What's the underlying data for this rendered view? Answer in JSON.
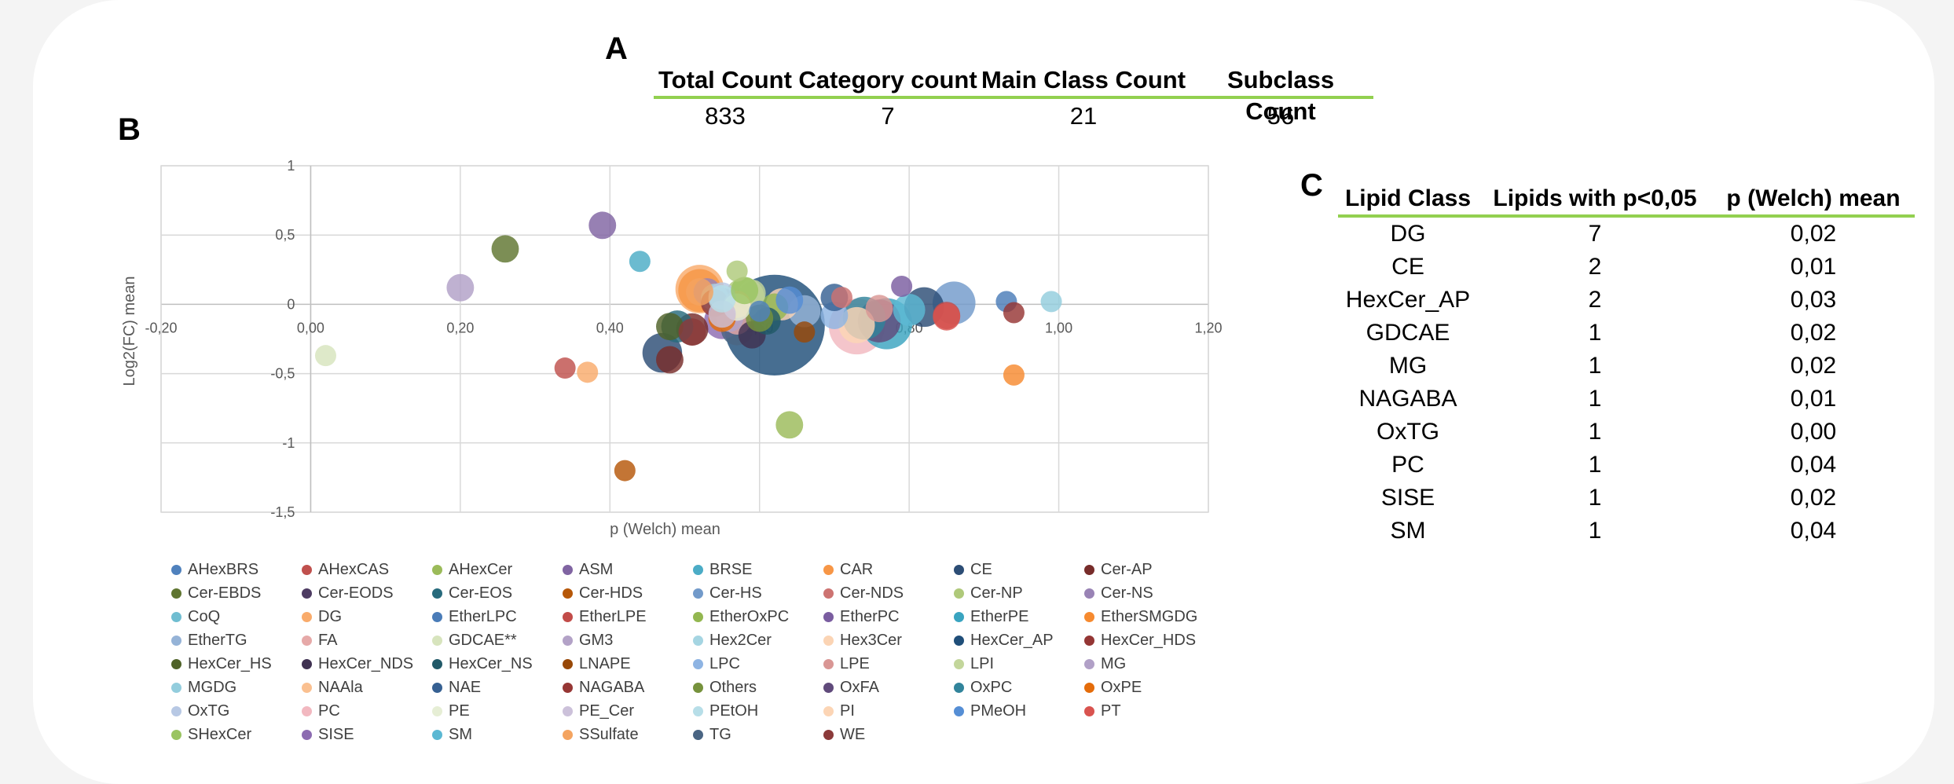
{
  "panels": {
    "a": "A",
    "b": "B",
    "c": "C"
  },
  "table_a": {
    "headers": [
      "Total Count",
      "Category count",
      "Main Class Count",
      "Subclass Count"
    ],
    "values": [
      "833",
      "7",
      "21",
      "56"
    ]
  },
  "table_c": {
    "headers": [
      "Lipid Class",
      "Lipids with p<0,05",
      "p (Welch) mean"
    ],
    "rows": [
      [
        "DG",
        "7",
        "0,02"
      ],
      [
        "CE",
        "2",
        "0,01"
      ],
      [
        "HexCer_AP",
        "2",
        "0,03"
      ],
      [
        "GDCAE",
        "1",
        "0,02"
      ],
      [
        "MG",
        "1",
        "0,02"
      ],
      [
        "NAGABA",
        "1",
        "0,01"
      ],
      [
        "OxTG",
        "1",
        "0,00"
      ],
      [
        "PC",
        "1",
        "0,04"
      ],
      [
        "SISE",
        "1",
        "0,02"
      ],
      [
        "SM",
        "1",
        "0,04"
      ]
    ]
  },
  "chart_data": {
    "type": "scatter",
    "title": "",
    "xlabel": "p (Welch) mean",
    "ylabel": "Log2(FC) mean",
    "xlim": [
      -0.2,
      1.2
    ],
    "ylim": [
      -1.5,
      1
    ],
    "x_ticks": [
      "-0,20",
      "0,00",
      "0,20",
      "0,40",
      "0,60",
      "0,80",
      "1,00",
      "1,20"
    ],
    "y_ticks": [
      "1",
      "0,5",
      "0",
      "-0,5",
      "-1",
      "-1,5"
    ],
    "grid": true,
    "legend_position": "bottom",
    "series": [
      {
        "name": "AHexBRS",
        "color": "#4f81bd",
        "points": [
          [
            0.6,
            -0.05,
            1
          ]
        ]
      },
      {
        "name": "AHexCAS",
        "color": "#c0504d",
        "points": [
          [
            0.34,
            -0.46,
            1
          ]
        ]
      },
      {
        "name": "AHexCer",
        "color": "#9bbb59",
        "points": [
          [
            0.64,
            -0.87,
            2
          ]
        ]
      },
      {
        "name": "ASM",
        "color": "#8064a2",
        "points": [
          [
            0.39,
            0.57,
            2
          ]
        ]
      },
      {
        "name": "BRSE",
        "color": "#4bacc6",
        "points": [
          [
            0.44,
            0.31,
            1
          ]
        ]
      },
      {
        "name": "CAR",
        "color": "#f79646",
        "points": [
          [
            0.52,
            0.1,
            6
          ]
        ]
      },
      {
        "name": "CE",
        "color": "#2c4d75",
        "points": [
          [
            0.47,
            -0.35,
            5
          ],
          [
            0.82,
            -0.02,
            5
          ]
        ]
      },
      {
        "name": "Cer-AP",
        "color": "#772c2a",
        "points": [
          [
            0.51,
            -0.18,
            3
          ],
          [
            0.48,
            -0.4,
            2
          ]
        ]
      },
      {
        "name": "Cer-EBDS",
        "color": "#5f7530",
        "points": [
          [
            0.26,
            0.4,
            2
          ]
        ]
      },
      {
        "name": "Cer-EODS",
        "color": "#4d3b62",
        "points": [
          [
            0.55,
            0.02,
            2
          ]
        ]
      },
      {
        "name": "Cer-EOS",
        "color": "#276a7c",
        "points": [
          [
            0.49,
            -0.16,
            3
          ]
        ]
      },
      {
        "name": "Cer-HDS",
        "color": "#b65708",
        "points": [
          [
            0.42,
            -1.2,
            1
          ]
        ]
      },
      {
        "name": "Cer-HS",
        "color": "#729aca",
        "points": [
          [
            0.86,
            0.01,
            6
          ]
        ]
      },
      {
        "name": "Cer-NDS",
        "color": "#cd7371",
        "points": [
          [
            0.71,
            0.05,
            1
          ]
        ]
      },
      {
        "name": "Cer-NP",
        "color": "#afc97a",
        "points": [
          [
            0.58,
            0.05,
            5
          ],
          [
            0.57,
            0.24,
            1
          ]
        ]
      },
      {
        "name": "Cer-NS",
        "color": "#9983b5",
        "points": [
          [
            0.53,
            0.09,
            2
          ]
        ]
      },
      {
        "name": "CoQ",
        "color": "#6fbdd1",
        "points": [
          [
            0.54,
            0.03,
            2
          ]
        ]
      },
      {
        "name": "DG",
        "color": "#f9ab6b",
        "points": [
          [
            0.52,
            0.11,
            8
          ],
          [
            0.37,
            -0.49,
            1
          ]
        ]
      },
      {
        "name": "EtherLPC",
        "color": "#4a7cb8",
        "points": [
          [
            0.93,
            0.02,
            1
          ]
        ]
      },
      {
        "name": "EtherLPE",
        "color": "#c24c49",
        "points": [
          [
            0.85,
            -0.08,
            2
          ]
        ]
      },
      {
        "name": "EtherOxPC",
        "color": "#93b750",
        "points": [
          [
            0.62,
            -0.02,
            2
          ]
        ]
      },
      {
        "name": "EtherPC",
        "color": "#7a5da0",
        "points": [
          [
            0.79,
            0.13,
            1
          ]
        ]
      },
      {
        "name": "EtherPE",
        "color": "#39a4c0",
        "points": [
          [
            0.77,
            -0.14,
            9
          ]
        ]
      },
      {
        "name": "EtherSMGDG",
        "color": "#f68a2f",
        "points": [
          [
            0.94,
            -0.51,
            1
          ]
        ]
      },
      {
        "name": "EtherTG",
        "color": "#95b3d7",
        "points": [
          [
            0.66,
            -0.05,
            3
          ]
        ]
      },
      {
        "name": "FA",
        "color": "#e6a9a8",
        "points": [
          [
            0.57,
            -0.12,
            2
          ]
        ]
      },
      {
        "name": "GDCAE**",
        "color": "#d7e4bd",
        "points": [
          [
            0.02,
            -0.37,
            1
          ]
        ]
      },
      {
        "name": "GM3",
        "color": "#b3a2c7",
        "points": [
          [
            0.56,
            -0.1,
            2
          ]
        ]
      },
      {
        "name": "Hex2Cer",
        "color": "#a5d5e2",
        "points": [
          [
            0.54,
            0.05,
            2
          ]
        ]
      },
      {
        "name": "Hex3Cer",
        "color": "#fbd4b4",
        "points": [
          [
            0.63,
            0.0,
            3
          ]
        ]
      },
      {
        "name": "HexCer_AP",
        "color": "#1f4e79",
        "points": [
          [
            0.62,
            -0.15,
            40
          ]
        ]
      },
      {
        "name": "HexCer_HDS",
        "color": "#943634",
        "points": [
          [
            0.54,
            0.01,
            2
          ]
        ]
      },
      {
        "name": "HexCer_HS",
        "color": "#4f6228",
        "points": [
          [
            0.48,
            -0.16,
            2
          ]
        ]
      },
      {
        "name": "HexCer_NDS",
        "color": "#3f3151",
        "points": [
          [
            0.59,
            -0.22,
            2
          ]
        ]
      },
      {
        "name": "HexCer_NS",
        "color": "#215968",
        "points": [
          [
            0.61,
            -0.12,
            2
          ]
        ]
      },
      {
        "name": "LNAPE",
        "color": "#984807",
        "points": [
          [
            0.66,
            -0.2,
            1
          ]
        ]
      },
      {
        "name": "LPC",
        "color": "#8eb4e3",
        "points": [
          [
            0.7,
            -0.08,
            2
          ]
        ]
      },
      {
        "name": "LPE",
        "color": "#d99694",
        "points": [
          [
            0.76,
            -0.03,
            2
          ]
        ]
      },
      {
        "name": "LPI",
        "color": "#c3d69b",
        "points": [
          [
            0.59,
            0.08,
            2
          ]
        ]
      },
      {
        "name": "MG",
        "color": "#b1a0c7",
        "points": [
          [
            0.2,
            0.12,
            2
          ]
        ]
      },
      {
        "name": "MGDG",
        "color": "#93cddd",
        "points": [
          [
            0.99,
            0.02,
            1
          ]
        ]
      },
      {
        "name": "NAAla",
        "color": "#fac090",
        "points": [
          [
            0.57,
            0.0,
            2
          ]
        ]
      },
      {
        "name": "NAE",
        "color": "#366092",
        "points": [
          [
            0.7,
            0.05,
            2
          ]
        ]
      },
      {
        "name": "NAGABA",
        "color": "#963634",
        "points": [
          [
            0.94,
            -0.06,
            1
          ]
        ]
      },
      {
        "name": "Others",
        "color": "#76923c",
        "points": [
          [
            0.6,
            -0.1,
            2
          ]
        ]
      },
      {
        "name": "OxFA",
        "color": "#604a7b",
        "points": [
          [
            0.76,
            -0.12,
            6
          ]
        ]
      },
      {
        "name": "OxPC",
        "color": "#31849b",
        "points": [
          [
            0.74,
            -0.1,
            6
          ]
        ]
      },
      {
        "name": "OxPE",
        "color": "#e46c0a",
        "points": [
          [
            0.55,
            -0.1,
            2
          ]
        ]
      },
      {
        "name": "OxTG",
        "color": "#b7c8e4",
        "points": [
          [
            0.55,
            0.06,
            2
          ]
        ]
      },
      {
        "name": "PC",
        "color": "#f2b8c0",
        "points": [
          [
            0.73,
            -0.16,
            11
          ]
        ]
      },
      {
        "name": "PE",
        "color": "#e6eed5",
        "points": [
          [
            0.57,
            -0.02,
            2
          ]
        ]
      },
      {
        "name": "PE_Cer",
        "color": "#ccc1da",
        "points": [
          [
            0.55,
            -0.07,
            2
          ]
        ]
      },
      {
        "name": "PEtOH",
        "color": "#b7dee8",
        "points": [
          [
            0.55,
            0.04,
            2
          ]
        ]
      },
      {
        "name": "PI",
        "color": "#fcd5b5",
        "points": [
          [
            0.73,
            -0.15,
            4
          ]
        ]
      },
      {
        "name": "PMeOH",
        "color": "#558ed5",
        "points": [
          [
            0.64,
            0.03,
            2
          ]
        ]
      },
      {
        "name": "PT",
        "color": "#d9534f",
        "points": [
          [
            0.85,
            -0.09,
            2
          ]
        ]
      },
      {
        "name": "SHexCer",
        "color": "#9ac461",
        "points": [
          [
            0.58,
            0.1,
            2
          ]
        ]
      },
      {
        "name": "SISE",
        "color": "#8c6bb1",
        "points": [
          [
            0.55,
            -0.12,
            4
          ]
        ]
      },
      {
        "name": "SM",
        "color": "#5bb8d3",
        "points": [
          [
            0.8,
            -0.04,
            3
          ]
        ]
      },
      {
        "name": "SSulfate",
        "color": "#f4a460",
        "points": [
          [
            0.52,
            0.09,
            2
          ]
        ]
      },
      {
        "name": "TG",
        "color": "#4a6583",
        "points": [
          [
            0.57,
            -0.18,
            3
          ]
        ]
      },
      {
        "name": "WE",
        "color": "#8b3a3a",
        "points": [
          [
            0.51,
            -0.2,
            2
          ]
        ]
      }
    ]
  }
}
